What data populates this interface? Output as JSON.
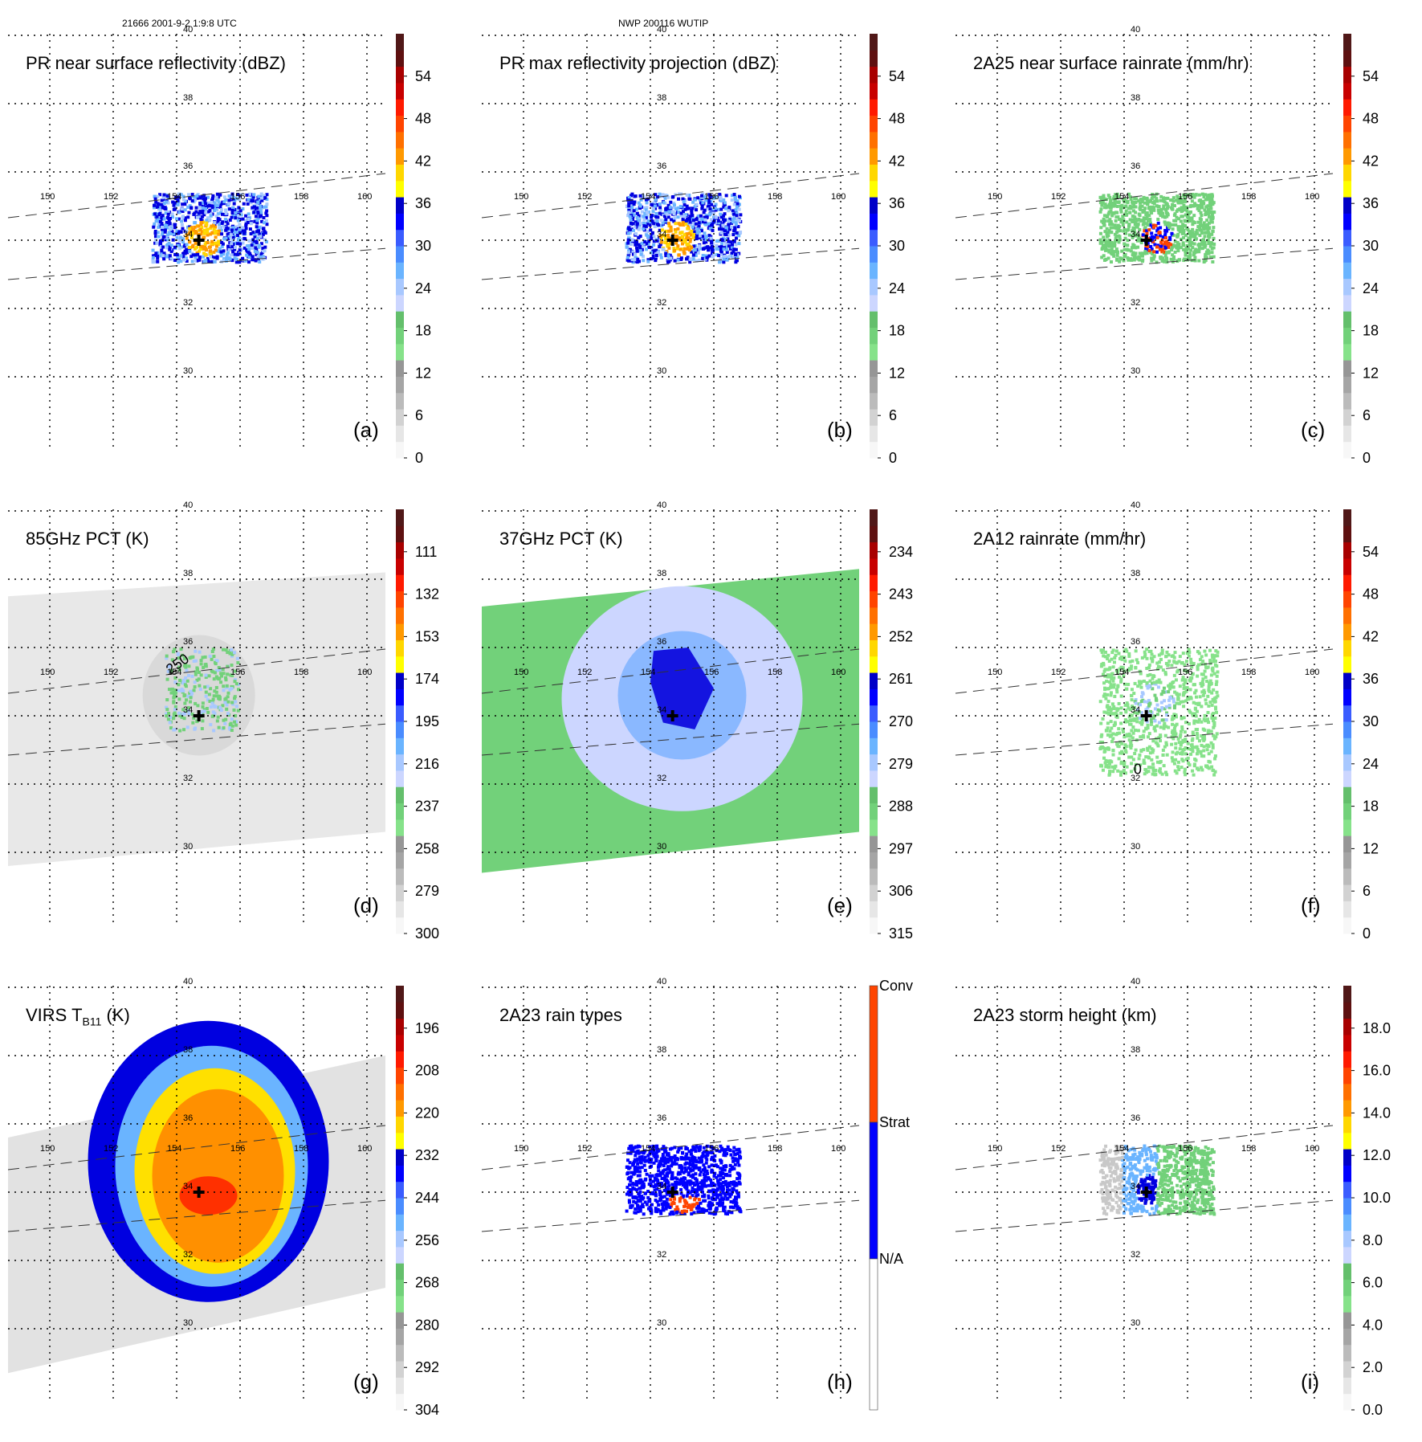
{
  "header": {
    "left": "21666 2001-9-2 1:9:8 UTC",
    "center": "NWP 200116 WUTIP"
  },
  "chart_data": [
    {
      "id": "a",
      "type": "heatmap",
      "title": "PR near surface reflectivity (dBZ)",
      "panel_label": "(a)",
      "colorbar": {
        "ticks": [
          "0",
          "6",
          "12",
          "18",
          "24",
          "30",
          "36",
          "42",
          "48",
          "54"
        ],
        "range": [
          0,
          60
        ],
        "kind": "continuous"
      },
      "swath": "PR",
      "field_extent": {
        "lon": [
          153.2,
          156.8
        ],
        "lat": [
          33.4,
          35.4
        ]
      },
      "core": {
        "lon": 154.8,
        "lat": 34.1,
        "level": "orange"
      }
    },
    {
      "id": "b",
      "type": "heatmap",
      "title": "PR max reflectivity projection (dBZ)",
      "panel_label": "(b)",
      "colorbar": {
        "ticks": [
          "0",
          "6",
          "12",
          "18",
          "24",
          "30",
          "36",
          "42",
          "48",
          "54"
        ],
        "range": [
          0,
          60
        ],
        "kind": "continuous"
      },
      "swath": "PR",
      "field_extent": {
        "lon": [
          153.2,
          156.8
        ],
        "lat": [
          33.4,
          35.4
        ]
      },
      "core": {
        "lon": 154.8,
        "lat": 34.1,
        "level": "orange"
      }
    },
    {
      "id": "c",
      "type": "heatmap",
      "title": "2A25 near surface rainrate (mm/hr)",
      "panel_label": "(c)",
      "colorbar": {
        "ticks": [
          "0",
          "6",
          "12",
          "18",
          "24",
          "30",
          "36",
          "42",
          "48",
          "54"
        ],
        "range": [
          0,
          60
        ],
        "kind": "continuous"
      },
      "swath": "PR",
      "field_extent": {
        "lon": [
          153.2,
          156.8
        ],
        "lat": [
          33.4,
          35.4
        ]
      },
      "core": {
        "lon": 155.0,
        "lat": 34.1,
        "level": "red"
      }
    },
    {
      "id": "d",
      "type": "heatmap",
      "title": "85GHz PCT (K)",
      "panel_label": "(d)",
      "colorbar": {
        "ticks": [
          "300",
          "279",
          "258",
          "237",
          "216",
          "195",
          "174",
          "153",
          "132",
          "111"
        ],
        "range": [
          90,
          300
        ],
        "kind": "continuous"
      },
      "swath": "TMI",
      "contour_label": "250",
      "field_extent": {
        "lon": [
          153.6,
          155.9
        ],
        "lat": [
          33.6,
          36.0
        ]
      },
      "core": {
        "lon": 154.6,
        "lat": 35.4,
        "level": "green"
      }
    },
    {
      "id": "e",
      "type": "heatmap",
      "title": "37GHz PCT (K)",
      "panel_label": "(e)",
      "colorbar": {
        "ticks": [
          "315",
          "306",
          "297",
          "288",
          "279",
          "270",
          "261",
          "252",
          "243",
          "234"
        ],
        "range": [
          225,
          315
        ],
        "kind": "continuous"
      },
      "swath": "TMI",
      "field_extent": {
        "lon": [
          149,
          161.5
        ],
        "lat": [
          29.8,
          39.0
        ]
      },
      "core": {
        "lon": 154.8,
        "lat": 34.5,
        "level": "blue"
      }
    },
    {
      "id": "f",
      "type": "heatmap",
      "title": "2A12 rainrate (mm/hr)",
      "panel_label": "(f)",
      "colorbar": {
        "ticks": [
          "0",
          "6",
          "12",
          "18",
          "24",
          "30",
          "36",
          "42",
          "48",
          "54"
        ],
        "range": [
          0,
          60
        ],
        "kind": "continuous"
      },
      "swath": "TMI",
      "contour_label": "0",
      "field_extent": {
        "lon": [
          153.2,
          156.9
        ],
        "lat": [
          32.3,
          36.0
        ]
      },
      "core": {
        "lon": 154.9,
        "lat": 34.4,
        "level": "lightblue"
      }
    },
    {
      "id": "g",
      "type": "heatmap",
      "title": "VIRS T",
      "title_sub": "B11",
      "title_suffix": " (K)",
      "panel_label": "(g)",
      "colorbar": {
        "ticks": [
          "304",
          "292",
          "280",
          "268",
          "256",
          "244",
          "232",
          "220",
          "208",
          "196"
        ],
        "range": [
          184,
          304
        ],
        "kind": "continuous"
      },
      "swath": "VIRS",
      "field_extent": {
        "lon": [
          152.5,
          157.2
        ],
        "lat": [
          31.0,
          37.5
        ]
      },
      "core": {
        "lon": 154.9,
        "lat": 34.0,
        "level": "red"
      }
    },
    {
      "id": "h",
      "type": "heatmap",
      "title": "2A23 rain types",
      "panel_label": "(h)",
      "colorbar": {
        "ticks": [
          "N/A",
          "Strat",
          "Conv"
        ],
        "kind": "categorical",
        "colors": [
          "#ffffff",
          "#0000ff",
          "#ff4500"
        ]
      },
      "swath": "PR",
      "field_extent": {
        "lon": [
          153.2,
          156.8
        ],
        "lat": [
          33.4,
          35.4
        ]
      },
      "core": {
        "lon": 155.0,
        "lat": 33.9,
        "level": "conv"
      }
    },
    {
      "id": "i",
      "type": "heatmap",
      "title": "2A23 storm height (km)",
      "panel_label": "(i)",
      "colorbar": {
        "ticks": [
          "0.0",
          "2.0",
          "4.0",
          "6.0",
          "8.0",
          "10.0",
          "12.0",
          "14.0",
          "16.0",
          "18.0"
        ],
        "range": [
          0,
          20
        ],
        "kind": "continuous"
      },
      "swath": "PR",
      "field_extent": {
        "lon": [
          153.2,
          156.8
        ],
        "lat": [
          33.4,
          35.4
        ]
      },
      "core": {
        "lon": 154.8,
        "lat": 34.1,
        "level": "blue"
      }
    }
  ],
  "map": {
    "lon_ticks": [
      "150",
      "152",
      "154",
      "156",
      "158",
      "160"
    ],
    "lat_ticks": [
      "30",
      "32",
      "34",
      "36",
      "38",
      "40"
    ],
    "lon_range": [
      148.7,
      161.5
    ],
    "lat_range": [
      29,
      40
    ],
    "storm_center": {
      "lon": 154.7,
      "lat": 34.0,
      "marker": "plus"
    }
  },
  "colors": {
    "scale": [
      "#f7f7f7",
      "#e6e6e6",
      "#d2d2d2",
      "#bbbbbb",
      "#a5a5a5",
      "#969696",
      "#86e28a",
      "#72d17a",
      "#64bf6c",
      "#ccd6ff",
      "#a8c8ff",
      "#6ab4ff",
      "#4a8cff",
      "#3a5cff",
      "#0000ff",
      "#0000c8",
      "#ffff00",
      "#ffd700",
      "#ff9900",
      "#ff7000",
      "#ff4400",
      "#ff1a00",
      "#c80000",
      "#a80000",
      "#5e1010",
      "#501818"
    ]
  }
}
